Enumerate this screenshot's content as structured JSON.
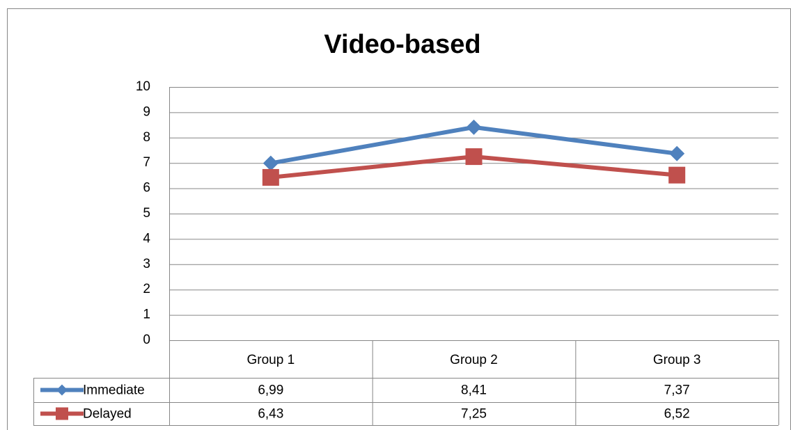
{
  "chart_data": {
    "type": "line",
    "title": "Video-based",
    "categories": [
      "Group 1",
      "Group 2",
      "Group 3"
    ],
    "series": [
      {
        "name": "Immediate",
        "color": "#4f81bd",
        "marker": "diamond",
        "values": [
          6.99,
          8.41,
          7.37
        ],
        "value_labels": [
          "6,99",
          "8,41",
          "7,37"
        ]
      },
      {
        "name": "Delayed",
        "color": "#c0504d",
        "marker": "square",
        "values": [
          6.43,
          7.25,
          6.52
        ],
        "value_labels": [
          "6,43",
          "7,25",
          "6,52"
        ]
      }
    ],
    "ylim": [
      0,
      10
    ],
    "yticks": [
      0,
      1,
      2,
      3,
      4,
      5,
      6,
      7,
      8,
      9,
      10
    ],
    "grid": true,
    "data_table": true
  }
}
